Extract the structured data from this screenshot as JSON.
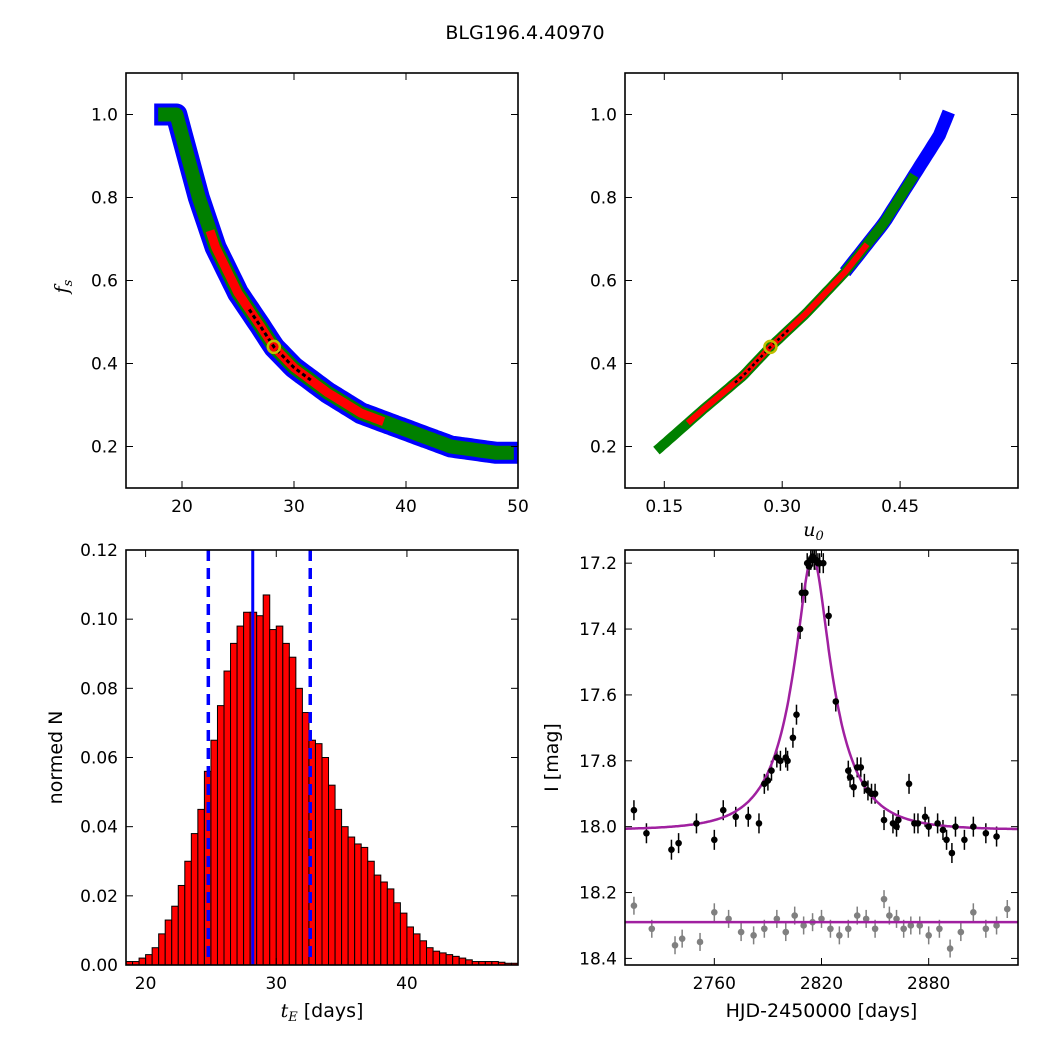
{
  "figure": {
    "title": "BLG196.4.40970"
  },
  "colors": {
    "outer": "#0000ff",
    "middle": "#008000",
    "inner": "#ff0000",
    "core": "#000000",
    "best_fit_marker": "#bfbf00",
    "bar_fill": "#ff0000",
    "median_line": "#0000ff",
    "model_curve": "#a020a0",
    "data_primary": "#000000",
    "data_secondary": "#808080"
  },
  "chart_data": [
    {
      "id": "fs_vs_tE",
      "type": "scatter",
      "xlabel": "",
      "ylabel_main": "f",
      "ylabel_sub": "s",
      "xlim": [
        15,
        50
      ],
      "ylim": [
        0.1,
        1.1
      ],
      "xticks": [
        20,
        30,
        40,
        50
      ],
      "yticks": [
        0.2,
        0.4,
        0.6,
        0.8,
        1.0
      ],
      "xtick_labels": [
        "20",
        "30",
        "40",
        "50"
      ],
      "ytick_labels": [
        "0.2",
        "0.4",
        "0.6",
        "0.8",
        "1.0"
      ],
      "band_centerline": [
        [
          19.5,
          1.0
        ],
        [
          20.5,
          0.9
        ],
        [
          21.5,
          0.8
        ],
        [
          23,
          0.68
        ],
        [
          25,
          0.57
        ],
        [
          27,
          0.49
        ],
        [
          28.2,
          0.44
        ],
        [
          30,
          0.39
        ],
        [
          33,
          0.33
        ],
        [
          36,
          0.28
        ],
        [
          40,
          0.24
        ],
        [
          44,
          0.2
        ],
        [
          48,
          0.185
        ]
      ],
      "band_extent_x": [
        18.5,
        49
      ],
      "best_fit": [
        28.2,
        0.44
      ]
    },
    {
      "id": "fs_vs_u0",
      "type": "scatter",
      "xlabel_main": "u",
      "xlabel_sub": "0",
      "ylabel": "",
      "xlim": [
        0.1,
        0.6
      ],
      "ylim": [
        0.1,
        1.1
      ],
      "xticks": [
        0.15,
        0.3,
        0.45
      ],
      "yticks": [
        0.2,
        0.4,
        0.6,
        0.8,
        1.0
      ],
      "xtick_labels": [
        "0.15",
        "0.30",
        "0.45"
      ],
      "ytick_labels": [
        "0.2",
        "0.4",
        "0.6",
        "0.8",
        "1.0"
      ],
      "band_centerline": [
        [
          0.14,
          0.19
        ],
        [
          0.2,
          0.29
        ],
        [
          0.25,
          0.37
        ],
        [
          0.285,
          0.44
        ],
        [
          0.33,
          0.52
        ],
        [
          0.38,
          0.62
        ],
        [
          0.43,
          0.74
        ],
        [
          0.47,
          0.86
        ],
        [
          0.5,
          0.95
        ],
        [
          0.515,
          1.02
        ]
      ],
      "best_fit": [
        0.285,
        0.44
      ]
    },
    {
      "id": "tE_histogram",
      "type": "bar",
      "xlabel_main": "t",
      "xlabel_sub": "E",
      "xlabel_unit": "[days]",
      "ylabel": "normed N",
      "xlim": [
        18.5,
        48.5
      ],
      "ylim": [
        0,
        0.12
      ],
      "xticks": [
        20,
        30,
        40
      ],
      "yticks": [
        0,
        0.02,
        0.04,
        0.06,
        0.08,
        0.1,
        0.12
      ],
      "xtick_labels": [
        "20",
        "30",
        "40"
      ],
      "ytick_labels": [
        "0.00",
        "0.02",
        "0.04",
        "0.06",
        "0.08",
        "0.10",
        "0.12"
      ],
      "bin_start": 18.5,
      "bin_width": 0.5,
      "values": [
        0.001,
        0.001,
        0.002,
        0.003,
        0.005,
        0.009,
        0.013,
        0.017,
        0.023,
        0.03,
        0.038,
        0.045,
        0.056,
        0.065,
        0.075,
        0.085,
        0.093,
        0.098,
        0.102,
        0.102,
        0.101,
        0.107,
        0.097,
        0.098,
        0.093,
        0.089,
        0.08,
        0.073,
        0.065,
        0.064,
        0.06,
        0.052,
        0.045,
        0.04,
        0.037,
        0.035,
        0.034,
        0.03,
        0.026,
        0.024,
        0.022,
        0.018,
        0.015,
        0.011,
        0.009,
        0.007,
        0.005,
        0.004,
        0.0035,
        0.003,
        0.0025,
        0.002,
        0.0015,
        0.001,
        0.001,
        0.001,
        0.001,
        0.0008,
        0.0005,
        0.0005
      ],
      "median": 28.2,
      "interval": [
        24.8,
        32.6
      ]
    },
    {
      "id": "lightcurve",
      "type": "scatter",
      "xlabel": "HJD-2450000 [days]",
      "ylabel": "I [mag]",
      "xlim": [
        2710,
        2930
      ],
      "ylim": [
        18.42,
        17.16
      ],
      "xticks": [
        2760,
        2820,
        2880
      ],
      "yticks": [
        17.2,
        17.4,
        17.6,
        17.8,
        18.0,
        18.2,
        18.4
      ],
      "xtick_labels": [
        "2760",
        "2820",
        "2880"
      ],
      "ytick_labels": [
        "17.2",
        "17.4",
        "17.6",
        "17.8",
        "18.0",
        "18.2",
        "18.4"
      ],
      "model": {
        "t0": 2815,
        "tE": 28.2,
        "u0": 0.285,
        "fs": 0.44,
        "base_mag": 18.01
      },
      "secondary_level": 18.29,
      "series": [
        {
          "name": "",
          "x": [
            2715,
            2722,
            2736,
            2740,
            2750,
            2760,
            2765,
            2772,
            2779,
            2785,
            2788,
            2790,
            2792,
            2795,
            2797,
            2800,
            2801,
            2804,
            2806,
            2808,
            2809,
            2811,
            2812,
            2813,
            2814,
            2815,
            2816,
            2817,
            2818,
            2819,
            2821,
            2824,
            2828,
            2835,
            2836,
            2838,
            2840,
            2842,
            2844,
            2846,
            2848,
            2850,
            2855,
            2860,
            2862,
            2863,
            2869,
            2872,
            2874,
            2878,
            2880,
            2885,
            2888,
            2890,
            2893,
            2895,
            2900,
            2905,
            2912,
            2918
          ],
          "y": [
            17.95,
            18.02,
            18.07,
            18.05,
            17.99,
            18.04,
            17.95,
            17.97,
            17.97,
            17.99,
            17.87,
            17.86,
            17.83,
            17.79,
            17.8,
            17.79,
            17.8,
            17.73,
            17.66,
            17.4,
            17.29,
            17.29,
            17.2,
            17.21,
            17.19,
            17.18,
            17.19,
            17.19,
            17.2,
            17.2,
            17.2,
            17.36,
            17.62,
            17.83,
            17.85,
            17.88,
            17.82,
            17.82,
            17.87,
            17.89,
            17.9,
            17.9,
            17.98,
            17.99,
            18.0,
            17.98,
            17.87,
            17.99,
            17.99,
            17.97,
            18.0,
            17.99,
            18.01,
            18.04,
            18.08,
            18.0,
            18.04,
            18.0,
            18.02,
            18.03
          ]
        },
        {
          "name": "",
          "x": [
            2715,
            2725,
            2738,
            2742,
            2752,
            2760,
            2768,
            2775,
            2782,
            2788,
            2795,
            2800,
            2805,
            2810,
            2815,
            2820,
            2825,
            2830,
            2835,
            2840,
            2845,
            2850,
            2855,
            2858,
            2862,
            2866,
            2870,
            2875,
            2880,
            2886,
            2892,
            2898,
            2905,
            2912,
            2918,
            2924
          ],
          "y": [
            18.24,
            18.31,
            18.36,
            18.34,
            18.35,
            18.26,
            18.28,
            18.32,
            18.33,
            18.31,
            18.28,
            18.32,
            18.27,
            18.3,
            18.29,
            18.28,
            18.31,
            18.33,
            18.31,
            18.27,
            18.28,
            18.31,
            18.22,
            18.27,
            18.28,
            18.31,
            18.3,
            18.3,
            18.33,
            18.31,
            18.37,
            18.32,
            18.26,
            18.31,
            18.3,
            18.25
          ]
        }
      ]
    }
  ]
}
